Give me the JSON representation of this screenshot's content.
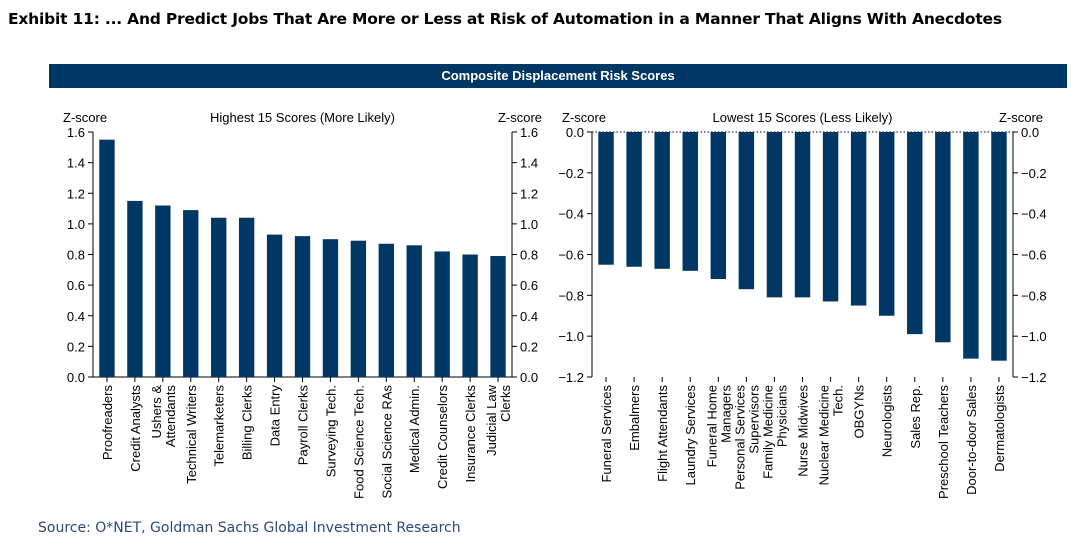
{
  "exhibit_title": "Exhibit 11: ... And Predict Jobs That Are More or Less at Risk of Automation in a Manner That Aligns With Anecdotes",
  "banner_title": "Composite Displacement Risk Scores",
  "source": "Source: O*NET, Goldman Sachs Global Investment Research",
  "colors": {
    "bar": "#003764",
    "banner": "#003764"
  },
  "chart_data": [
    {
      "type": "bar",
      "title": "Highest 15 Scores (More Likely)",
      "ylabel_left": "Z-score",
      "ylabel_right": "Z-score",
      "ylim": [
        0,
        1.6
      ],
      "yticks": [
        "0.0",
        "0.2",
        "0.4",
        "0.6",
        "0.8",
        "1.0",
        "1.2",
        "1.4",
        "1.6"
      ],
      "categories": [
        "Proofreaders",
        "Credit Analysts",
        "Ushers & Attendants",
        "Technical Writers",
        "Telemarketers",
        "Billing Clerks",
        "Data Entry",
        "Payroll Clerks",
        "Surveying Tech.",
        "Food Science Tech.",
        "Social Science RAs",
        "Medical Admin.",
        "Credit Counselors",
        "Insurance Clerks",
        "Judicial Law Clerks"
      ],
      "values": [
        1.55,
        1.15,
        1.12,
        1.09,
        1.04,
        1.04,
        0.93,
        0.92,
        0.9,
        0.89,
        0.87,
        0.86,
        0.82,
        0.8,
        0.79
      ]
    },
    {
      "type": "bar",
      "title": "Lowest 15 Scores (Less Likely)",
      "ylabel_left": "Z-score",
      "ylabel_right": "Z-score",
      "ylim": [
        -1.2,
        0
      ],
      "yticks": [
        "0.0",
        "−0.2",
        "−0.4",
        "−0.6",
        "−0.8",
        "−1.0",
        "−1.2"
      ],
      "categories": [
        "Funeral Services",
        "Embalmers",
        "Flight Attendants",
        "Laundry Services",
        "Funeral Home Managers",
        "Personal Services Supervisors",
        "Family Medicine Physicians",
        "Nurse Midwives",
        "Nuclear Medicine Tech.",
        "OBGYNs",
        "Neurologists",
        "Sales Rep.",
        "Preschool Teachers",
        "Door-to-door Sales",
        "Dermatologists"
      ],
      "values": [
        -0.65,
        -0.66,
        -0.67,
        -0.68,
        -0.72,
        -0.77,
        -0.81,
        -0.81,
        -0.83,
        -0.85,
        -0.9,
        -0.99,
        -1.03,
        -1.11,
        -1.12
      ]
    }
  ]
}
